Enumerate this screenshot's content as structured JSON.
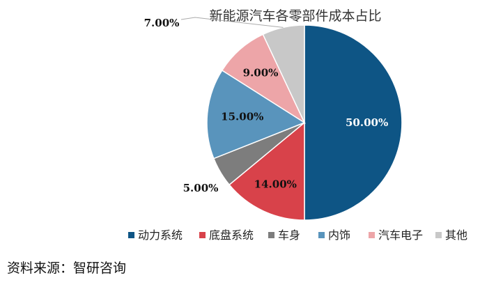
{
  "chart_data": {
    "type": "pie",
    "title": "新能源汽车各零部件成本占比",
    "categories": [
      "动力系统",
      "底盘系统",
      "车身",
      "内饰",
      "汽车电子",
      "其他"
    ],
    "values": [
      50.0,
      14.0,
      5.0,
      15.0,
      9.0,
      7.0
    ],
    "value_labels": [
      "50.00%",
      "14.00%",
      "5.00%",
      "15.00%",
      "9.00%",
      "7.00%"
    ],
    "colors": [
      "#0e5585",
      "#d8424a",
      "#7d7d7d",
      "#5994bc",
      "#eda5a8",
      "#c8c8c8"
    ],
    "legend_position": "bottom",
    "start_angle": "top, clockwise"
  },
  "source_text": "资料来源：智研咨询"
}
